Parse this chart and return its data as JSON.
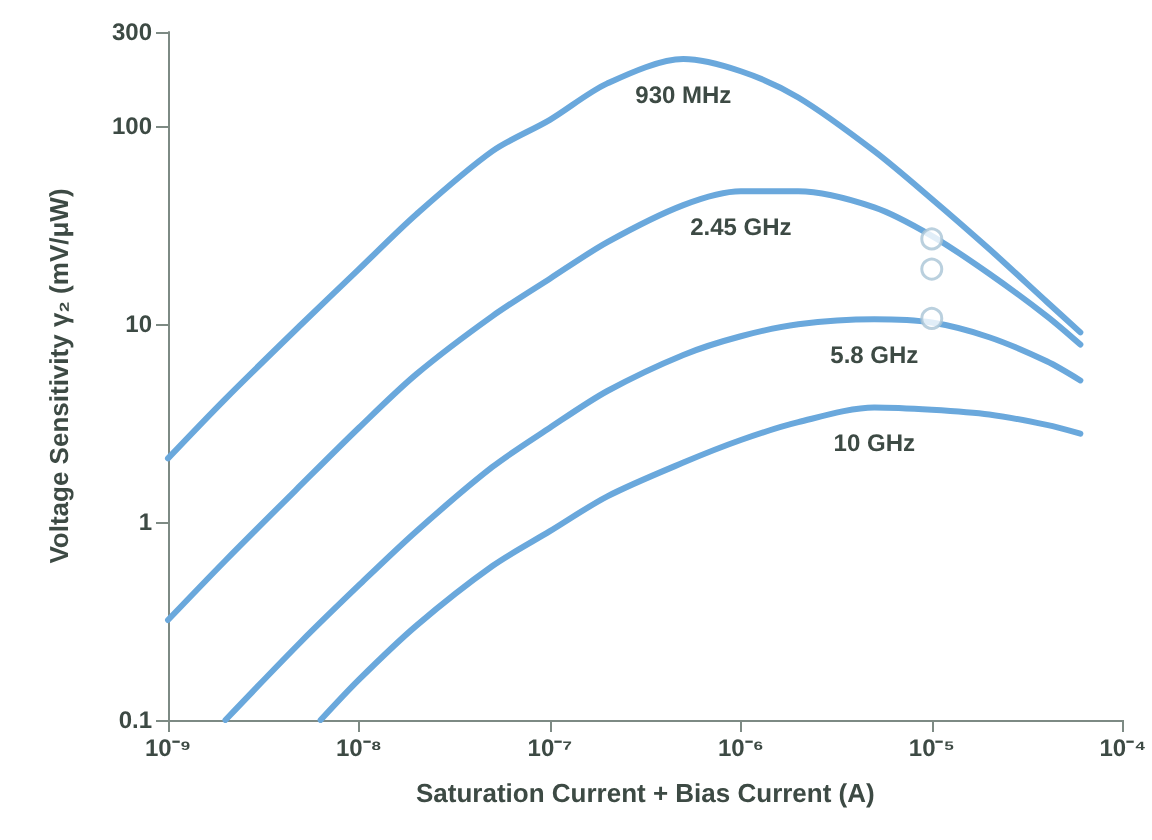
{
  "chart_data": {
    "type": "line",
    "xlabel": "Saturation Current + Bias Current (A)",
    "ylabel": "Voltage Sensitivity γ₂ (mV/μW)",
    "log": "xy",
    "grid": false,
    "legend": false,
    "marker": "none",
    "line_style": "solid",
    "xlim": [
      1e-09,
      0.0001
    ],
    "xticks": [
      {
        "value": 1e-09,
        "label": "10⁻⁹"
      },
      {
        "value": 1e-08,
        "label": "10⁻⁸"
      },
      {
        "value": 1e-07,
        "label": "10⁻⁷"
      },
      {
        "value": 1e-06,
        "label": "10⁻⁶"
      },
      {
        "value": 1e-05,
        "label": "10⁻⁵"
      },
      {
        "value": 0.0001,
        "label": "10⁻⁴"
      }
    ],
    "ylim": [
      0.1,
      300
    ],
    "yticks": [
      0.1,
      1,
      10,
      100,
      300
    ],
    "series": [
      {
        "name": "930 MHz",
        "color": "#6aa8dc",
        "x": [
          1e-09,
          2e-09,
          5e-09,
          1e-08,
          2e-08,
          5e-08,
          1e-07,
          2e-07,
          5e-07,
          1e-06,
          2e-06,
          5e-06,
          1e-05,
          2e-05,
          4e-05,
          6e-05
        ],
        "values": [
          2.1,
          4.2,
          10,
          19,
          36,
          75,
          108,
          165,
          219,
          190,
          140,
          75,
          43,
          24,
          13,
          9.1
        ]
      },
      {
        "name": "2.45 GHz",
        "color": "#6aa8dc",
        "x": [
          1e-09,
          2e-09,
          5e-09,
          1e-08,
          2e-08,
          5e-08,
          1e-07,
          2e-07,
          5e-07,
          1e-06,
          2e-06,
          5e-06,
          1e-05,
          2e-05,
          4e-05,
          6e-05
        ],
        "values": [
          0.32,
          0.64,
          1.55,
          3,
          5.6,
          11,
          17,
          26,
          40,
          47,
          47,
          39,
          28,
          18,
          11,
          7.9
        ]
      },
      {
        "name": "5.8 GHz",
        "color": "#6aa8dc",
        "x": [
          2e-09,
          5e-09,
          1e-08,
          2e-08,
          5e-08,
          1e-07,
          2e-07,
          5e-07,
          1e-06,
          2e-06,
          5e-06,
          1e-05,
          2e-05,
          4e-05,
          6e-05
        ],
        "values": [
          0.1,
          0.25,
          0.48,
          0.9,
          1.9,
          3,
          4.6,
          7,
          8.7,
          10,
          10.6,
          10.2,
          8.6,
          6.5,
          5.2
        ]
      },
      {
        "name": "10 GHz",
        "color": "#6aa8dc",
        "x": [
          6.3e-09,
          1e-08,
          2e-08,
          5e-08,
          1e-07,
          2e-07,
          5e-07,
          1e-06,
          2e-06,
          5e-06,
          1e-05,
          2e-05,
          4e-05,
          6e-05
        ],
        "values": [
          0.1,
          0.16,
          0.3,
          0.6,
          0.9,
          1.35,
          2,
          2.6,
          3.2,
          3.8,
          3.7,
          3.5,
          3.1,
          2.8
        ]
      },
      {
        "type": "scatter",
        "marker": "circle",
        "color": "#a9c4d6",
        "x": [
          1e-05,
          1e-05,
          1e-05
        ],
        "values": [
          27,
          19,
          10.7
        ]
      }
    ]
  }
}
